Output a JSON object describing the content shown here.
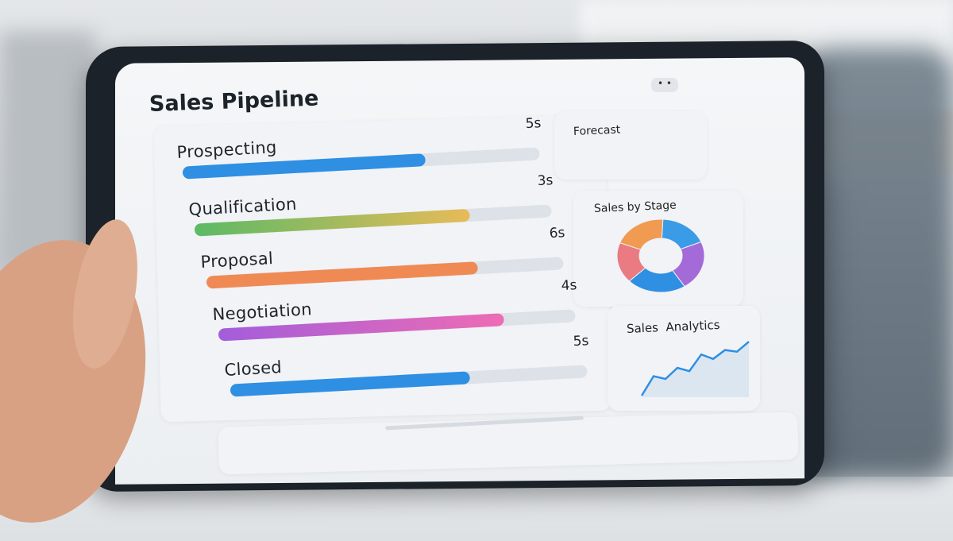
{
  "dashboard": {
    "title": "Sales Pipeline",
    "menu_icon": "more-dots-icon",
    "stages": [
      {
        "label": "Prospecting",
        "value": "5s",
        "progress": 0.68,
        "colors": [
          "#2e8fe3",
          "#2e8fe3"
        ]
      },
      {
        "label": "Qualification",
        "value": "3s",
        "progress": 0.77,
        "colors": [
          "#5cba65",
          "#e7bb58"
        ]
      },
      {
        "label": "Proposal",
        "value": "6s",
        "progress": 0.76,
        "colors": [
          "#f08a55",
          "#f08a55"
        ]
      },
      {
        "label": "Negotiation",
        "value": "4s",
        "progress": 0.8,
        "colors": [
          "#a35ddb",
          "#ee6cb4"
        ]
      },
      {
        "label": "Closed",
        "value": "5s",
        "progress": 0.67,
        "colors": [
          "#2e8fe3",
          "#2e8fe3"
        ]
      }
    ],
    "forecast": {
      "title": "Forecast"
    },
    "sales_by_stage": {
      "title": "Sales by Stage",
      "segments": [
        {
          "color": "#3a9be6",
          "share": 0.18
        },
        {
          "color": "#a46ad8",
          "share": 0.22
        },
        {
          "color": "#2e8fe3",
          "share": 0.22
        },
        {
          "color": "#ea7b82",
          "share": 0.18
        },
        {
          "color": "#f09a52",
          "share": 0.2
        }
      ]
    },
    "sales_analytics": {
      "title": "Sales  Analytics",
      "line_color": "#2e8fe3",
      "values": [
        0,
        35,
        30,
        50,
        44,
        74,
        66,
        82,
        79,
        97
      ]
    }
  }
}
